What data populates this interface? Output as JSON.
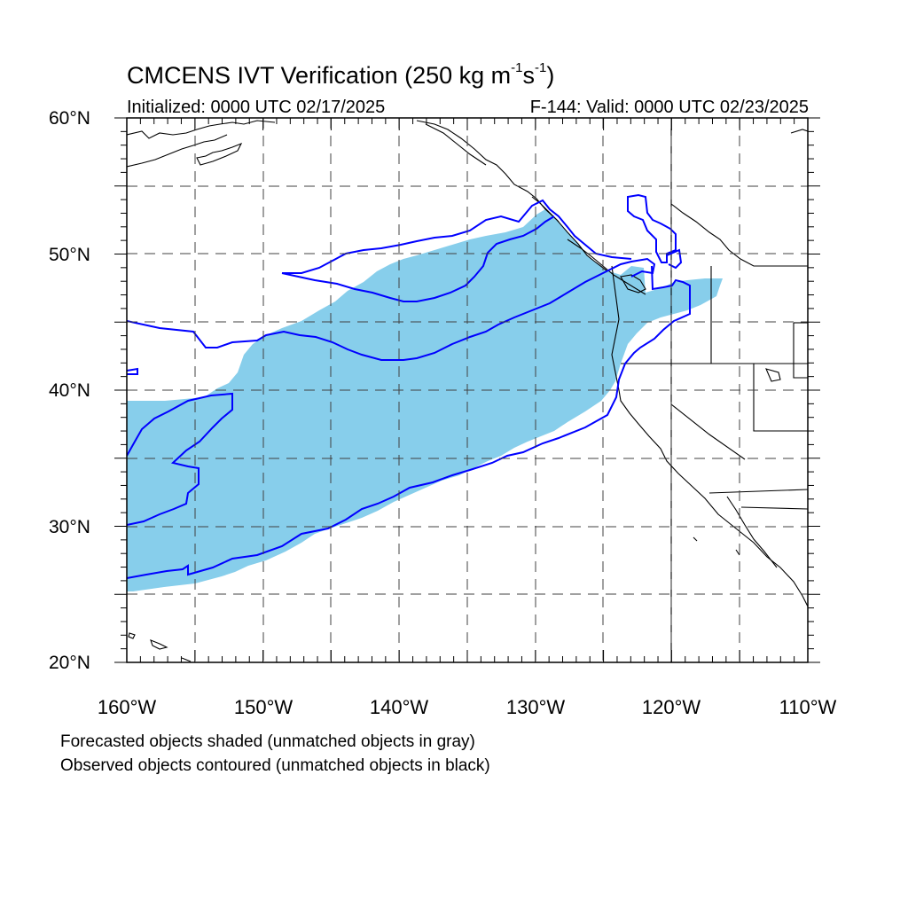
{
  "title": {
    "prefix": "CMCENS IVT Verification (250 kg m",
    "exp1": "-1",
    "mid": "s",
    "exp2": "-1",
    "suffix": ")"
  },
  "initialized": "Initialized: 0000 UTC 02/17/2025",
  "valid": "F-144: Valid: 0000 UTC 02/23/2025",
  "lat_labels": [
    "60°N",
    "50°N",
    "40°N",
    "30°N",
    "20°N"
  ],
  "lon_labels": [
    "160°W",
    "150°W",
    "140°W",
    "130°W",
    "120°W",
    "110°W"
  ],
  "notes": {
    "forecast": "Forecasted objects shaded (unmatched objects in gray)",
    "observed": "Observed objects contoured (unmatched objects in black)"
  },
  "colors": {
    "forecast_fill": "#87ceeb",
    "observed_contour": "#0000ff",
    "coastline": "#000000",
    "grid": "#404040"
  },
  "map_extent": {
    "lon_min": -160,
    "lon_max": -110,
    "lat_min": 20,
    "lat_max": 60
  }
}
